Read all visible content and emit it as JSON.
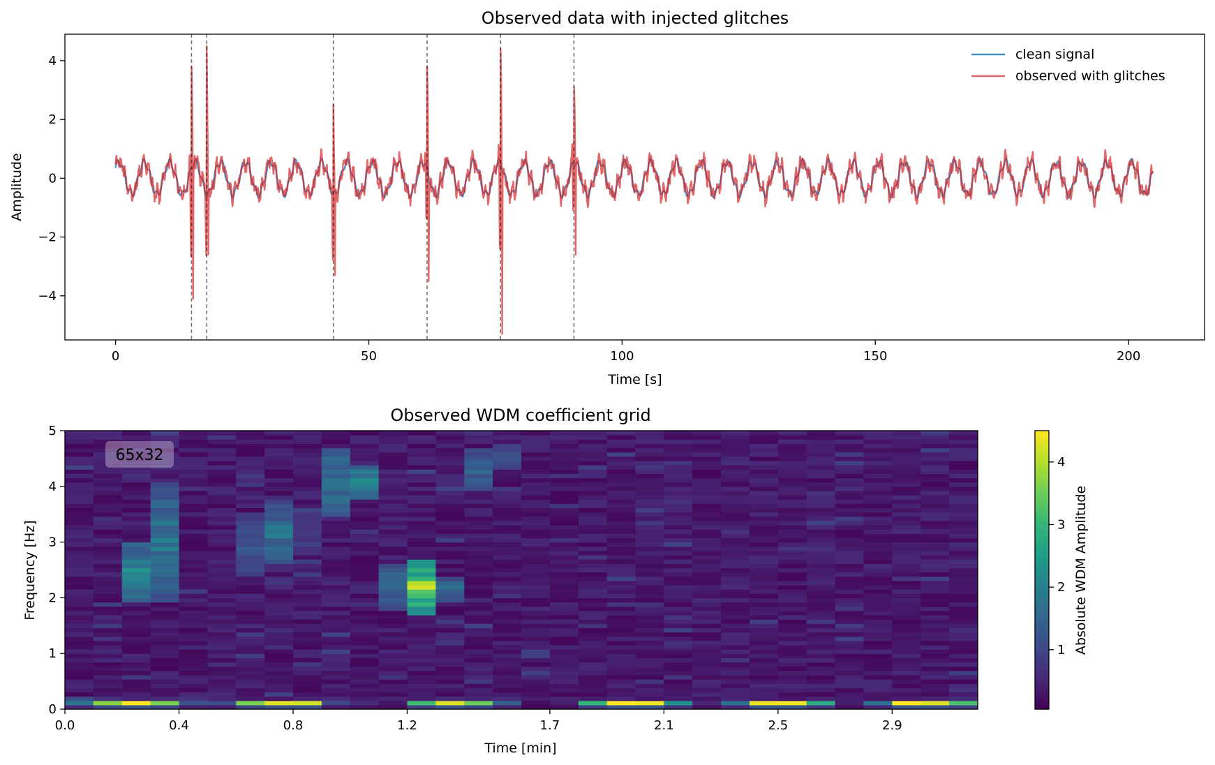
{
  "chart_data": [
    {
      "type": "line",
      "title": "Observed data with injected glitches",
      "xlabel": "Time [s]",
      "ylabel": "Amplitude",
      "xlim": [
        -10,
        215
      ],
      "ylim": [
        -5.5,
        4.9
      ],
      "xticks": [
        0,
        50,
        100,
        150,
        200
      ],
      "yticks": [
        4,
        2,
        0,
        -2,
        -4
      ],
      "xtick_labels": [
        "0",
        "50",
        "100",
        "150",
        "200"
      ],
      "ytick_labels": [
        "4",
        "2",
        "0",
        "−2",
        "−4"
      ],
      "legend_position": "top-right",
      "signal_period_s": 5.0,
      "signal_amplitude": 0.55,
      "duration_s": [
        0,
        204.8
      ],
      "series": [
        {
          "name": "clean signal",
          "color": "#1f77b4"
        },
        {
          "name": "observed with glitches",
          "color": "#d62728"
        }
      ],
      "glitches": [
        {
          "t": 15.0,
          "ymax": 3.8,
          "ymin": -4.1
        },
        {
          "t": 18.0,
          "ymax": 4.5,
          "ymin": -2.6
        },
        {
          "t": 43.0,
          "ymax": 2.5,
          "ymin": -3.3
        },
        {
          "t": 61.5,
          "ymax": 3.8,
          "ymin": -3.5
        },
        {
          "t": 76.0,
          "ymax": 4.4,
          "ymin": -5.3
        },
        {
          "t": 90.5,
          "ymax": 3.1,
          "ymin": -2.6
        }
      ],
      "glitch_marker_style": "dashed-vertical"
    },
    {
      "type": "heatmap",
      "title": "Observed WDM coefficient grid",
      "xlabel": "Time [min]",
      "ylabel": "Frequency [Hz]",
      "xlim": [
        0,
        3.2
      ],
      "ylim": [
        0,
        5
      ],
      "xticks": [
        0.0,
        0.4,
        0.8,
        1.2,
        1.7,
        2.1,
        2.5,
        2.9
      ],
      "xtick_labels": [
        "0.0",
        "0.4",
        "0.8",
        "1.2",
        "1.7",
        "2.1",
        "2.5",
        "2.9"
      ],
      "yticks": [
        0,
        1,
        2,
        3,
        4,
        5
      ],
      "ytick_labels": [
        "0",
        "1",
        "2",
        "3",
        "4",
        "5"
      ],
      "n_time_bins": 32,
      "n_freq_bins": 65,
      "colormap": "viridis",
      "colorbar_label": "Absolute WDM Amplitude",
      "colorbar_range": [
        0.05,
        4.5
      ],
      "colorbar_ticks": [
        1,
        2,
        3,
        4
      ],
      "colorbar_tick_labels": [
        "1",
        "2",
        "3",
        "4"
      ],
      "annotation": "65x32",
      "lowest_band_row": [
        1.8,
        3.7,
        4.5,
        3.6,
        1.2,
        1.1,
        3.6,
        4.3,
        4.2,
        1.0,
        0.6,
        0.3,
        3.1,
        4.3,
        3.5,
        1.4,
        0.2,
        0.4,
        3.0,
        4.5,
        4.4,
        2.3,
        0.5,
        1.7,
        4.4,
        4.4,
        2.8,
        0.4,
        1.7,
        4.5,
        4.3,
        3.2
      ],
      "second_band_row": [
        1.1,
        0.7,
        0.5,
        0.6,
        0.7,
        0.5,
        0.4,
        0.3,
        0.5,
        0.6,
        0.4,
        0.5,
        0.4,
        0.6,
        0.5,
        0.6,
        0.4,
        0.5,
        0.4,
        0.5,
        0.3,
        0.4,
        0.3,
        0.5,
        0.4,
        0.3,
        0.5,
        0.4,
        0.3,
        0.4,
        0.5,
        0.6
      ],
      "hotspots": [
        {
          "col": 2,
          "f_lo": 1.9,
          "f_hi": 3.0,
          "peak": 2.5
        },
        {
          "col": 3,
          "f_lo": 1.9,
          "f_hi": 4.1,
          "peak": 2.2
        },
        {
          "col": 6,
          "f_lo": 2.4,
          "f_hi": 3.5,
          "peak": 1.4
        },
        {
          "col": 7,
          "f_lo": 2.6,
          "f_hi": 3.7,
          "peak": 2.1
        },
        {
          "col": 8,
          "f_lo": 2.8,
          "f_hi": 3.6,
          "peak": 0.9
        },
        {
          "col": 9,
          "f_lo": 3.5,
          "f_hi": 4.7,
          "peak": 2.2
        },
        {
          "col": 10,
          "f_lo": 3.8,
          "f_hi": 4.4,
          "peak": 2.5
        },
        {
          "col": 11,
          "f_lo": 1.8,
          "f_hi": 2.6,
          "peak": 2.0
        },
        {
          "col": 12,
          "f_lo": 1.7,
          "f_hi": 2.7,
          "peak": 4.3
        },
        {
          "col": 13,
          "f_lo": 1.9,
          "f_hi": 2.4,
          "peak": 1.9
        },
        {
          "col": 14,
          "f_lo": 3.9,
          "f_hi": 4.7,
          "peak": 1.8
        },
        {
          "col": 15,
          "f_lo": 4.3,
          "f_hi": 4.8,
          "peak": 1.3
        }
      ]
    }
  ]
}
